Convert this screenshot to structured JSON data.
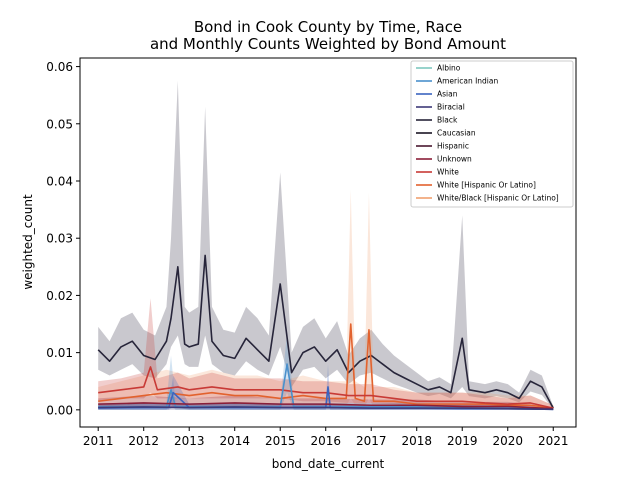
{
  "chart_data": {
    "type": "line",
    "title_line1": "Bond in Cook County by Time, Race",
    "title_line2": "and Monthly Counts Weighted by Bond Amount",
    "xlabel": "bond_date_current",
    "ylabel": "weighted_count",
    "xlim": [
      2010.6,
      2021.5
    ],
    "ylim": [
      -0.003,
      0.0615
    ],
    "x_ticks": [
      2011,
      2012,
      2013,
      2014,
      2015,
      2016,
      2017,
      2018,
      2019,
      2020,
      2021
    ],
    "y_ticks": [
      0.0,
      0.01,
      0.02,
      0.03,
      0.04,
      0.05,
      0.06
    ],
    "y_tick_labels": [
      "0.00",
      "0.01",
      "0.02",
      "0.03",
      "0.04",
      "0.05",
      "0.06"
    ],
    "legend_position": "top-right",
    "legend": [
      {
        "name": "Albino",
        "color": "#7ec8c0"
      },
      {
        "name": "American Indian",
        "color": "#4a90cc"
      },
      {
        "name": "Asian",
        "color": "#3b64c0"
      },
      {
        "name": "Biracial",
        "color": "#3e3a78"
      },
      {
        "name": "Black",
        "color": "#27253a"
      },
      {
        "name": "Caucasian",
        "color": "#1b1624"
      },
      {
        "name": "Hispanic",
        "color": "#4a1830"
      },
      {
        "name": "Unknown",
        "color": "#8a1e38"
      },
      {
        "name": "White",
        "color": "#c83a36"
      },
      {
        "name": "White [Hispanic Or Latino]",
        "color": "#e2622e"
      },
      {
        "name": "White/Black [Hispanic Or Latino]",
        "color": "#f0a070"
      }
    ],
    "series": [
      {
        "name": "Black",
        "color": "#27253a",
        "band_color": "#27253a",
        "x": [
          2011.0,
          2011.25,
          2011.5,
          2011.75,
          2012.0,
          2012.25,
          2012.5,
          2012.6,
          2012.75,
          2012.9,
          2013.0,
          2013.2,
          2013.35,
          2013.5,
          2013.75,
          2014.0,
          2014.25,
          2014.5,
          2014.75,
          2015.0,
          2015.25,
          2015.5,
          2015.75,
          2016.0,
          2016.25,
          2016.5,
          2016.75,
          2017.0,
          2017.25,
          2017.5,
          2017.75,
          2018.0,
          2018.25,
          2018.5,
          2018.75,
          2019.0,
          2019.15,
          2019.5,
          2019.75,
          2020.0,
          2020.25,
          2020.5,
          2020.75,
          2021.0
        ],
        "y": [
          0.0105,
          0.0085,
          0.011,
          0.012,
          0.0095,
          0.0088,
          0.012,
          0.016,
          0.025,
          0.0115,
          0.011,
          0.0115,
          0.027,
          0.012,
          0.0095,
          0.009,
          0.0125,
          0.0105,
          0.0085,
          0.022,
          0.0065,
          0.01,
          0.011,
          0.0085,
          0.0105,
          0.0065,
          0.0085,
          0.0095,
          0.008,
          0.0065,
          0.0055,
          0.0045,
          0.0035,
          0.004,
          0.003,
          0.0125,
          0.0035,
          0.003,
          0.0035,
          0.003,
          0.002,
          0.005,
          0.004,
          0.0003
        ],
        "band_low": [
          0.007,
          0.006,
          0.007,
          0.008,
          0.006,
          0.0055,
          0.008,
          0.011,
          0.013,
          0.008,
          0.0075,
          0.0075,
          0.013,
          0.008,
          0.0065,
          0.006,
          0.0085,
          0.007,
          0.006,
          0.011,
          0.004,
          0.007,
          0.0075,
          0.0055,
          0.007,
          0.0045,
          0.006,
          0.0065,
          0.0055,
          0.0045,
          0.0038,
          0.003,
          0.0024,
          0.0028,
          0.002,
          0.004,
          0.0024,
          0.002,
          0.0024,
          0.002,
          0.0013,
          0.0032,
          0.0026,
          0.0001
        ],
        "band_high": [
          0.0145,
          0.012,
          0.016,
          0.017,
          0.014,
          0.013,
          0.018,
          0.03,
          0.0575,
          0.018,
          0.017,
          0.018,
          0.053,
          0.018,
          0.014,
          0.0135,
          0.018,
          0.016,
          0.013,
          0.0415,
          0.01,
          0.0145,
          0.016,
          0.0125,
          0.0155,
          0.0095,
          0.0125,
          0.014,
          0.0115,
          0.0095,
          0.008,
          0.0065,
          0.005,
          0.0057,
          0.0045,
          0.034,
          0.005,
          0.0045,
          0.005,
          0.0045,
          0.003,
          0.007,
          0.006,
          0.0006
        ]
      },
      {
        "name": "White [Hispanic Or Latino]",
        "color": "#e2622e",
        "band_color": "#f0a070",
        "x": [
          2011.0,
          2011.5,
          2012.0,
          2012.5,
          2013.0,
          2013.5,
          2014.0,
          2014.5,
          2015.0,
          2015.5,
          2016.0,
          2016.45,
          2016.55,
          2016.65,
          2016.85,
          2016.95,
          2017.05,
          2017.5,
          2018.0,
          2018.5,
          2019.0,
          2019.5,
          2020.0,
          2020.5,
          2021.0
        ],
        "y": [
          0.0015,
          0.002,
          0.0025,
          0.003,
          0.0025,
          0.003,
          0.0025,
          0.0025,
          0.002,
          0.0025,
          0.002,
          0.002,
          0.015,
          0.002,
          0.0015,
          0.014,
          0.0015,
          0.0015,
          0.001,
          0.001,
          0.001,
          0.001,
          0.0008,
          0.0008,
          0.0003
        ],
        "band_low": [
          0.0005,
          0.0008,
          0.001,
          0.0012,
          0.001,
          0.0012,
          0.001,
          0.001,
          0.0008,
          0.001,
          0.0008,
          0.0008,
          0.002,
          0.0008,
          0.0005,
          0.002,
          0.0005,
          0.0005,
          0.0003,
          0.0003,
          0.0003,
          0.0003,
          0.0002,
          0.0002,
          0.0001
        ],
        "band_high": [
          0.004,
          0.005,
          0.006,
          0.007,
          0.006,
          0.007,
          0.006,
          0.006,
          0.005,
          0.006,
          0.005,
          0.005,
          0.0385,
          0.005,
          0.004,
          0.038,
          0.004,
          0.004,
          0.003,
          0.003,
          0.003,
          0.003,
          0.0025,
          0.0025,
          0.0008
        ]
      },
      {
        "name": "White",
        "color": "#c83a36",
        "band_color": "#c83a36",
        "x": [
          2011.0,
          2011.5,
          2012.0,
          2012.15,
          2012.3,
          2012.75,
          2013.0,
          2013.5,
          2014.0,
          2014.5,
          2015.0,
          2015.5,
          2016.0,
          2016.5,
          2017.0,
          2017.5,
          2018.0,
          2018.5,
          2019.0,
          2019.5,
          2020.0,
          2020.5,
          2021.0
        ],
        "y": [
          0.003,
          0.0035,
          0.004,
          0.0075,
          0.0035,
          0.004,
          0.0035,
          0.004,
          0.0035,
          0.0035,
          0.0035,
          0.003,
          0.003,
          0.0025,
          0.0025,
          0.002,
          0.0015,
          0.0015,
          0.0015,
          0.0012,
          0.001,
          0.0012,
          0.0003
        ],
        "band_low": [
          0.0015,
          0.002,
          0.002,
          0.003,
          0.002,
          0.002,
          0.002,
          0.002,
          0.002,
          0.002,
          0.002,
          0.0015,
          0.0015,
          0.0012,
          0.0012,
          0.001,
          0.0007,
          0.0007,
          0.0007,
          0.0005,
          0.0005,
          0.0005,
          0.0001
        ],
        "band_high": [
          0.005,
          0.0055,
          0.0065,
          0.0195,
          0.0055,
          0.0065,
          0.0055,
          0.0065,
          0.0055,
          0.0055,
          0.0055,
          0.005,
          0.005,
          0.0045,
          0.0045,
          0.0035,
          0.003,
          0.003,
          0.003,
          0.0025,
          0.002,
          0.0025,
          0.0008
        ]
      },
      {
        "name": "American Indian",
        "color": "#4a90cc",
        "band_color": "#4a90cc",
        "x": [
          2011.0,
          2012.0,
          2012.5,
          2012.6,
          2012.7,
          2013.0,
          2014.0,
          2014.5,
          2015.0,
          2015.15,
          2015.3,
          2016.0,
          2017.0,
          2018.0,
          2019.0,
          2020.0,
          2021.0
        ],
        "y": [
          0.0005,
          0.0005,
          0.0005,
          0.0035,
          0.0005,
          0.0005,
          0.0005,
          0.0005,
          0.0005,
          0.008,
          0.0005,
          0.0005,
          0.0005,
          0.0005,
          0.0003,
          0.0003,
          0.0001
        ],
        "band_low": [
          0.0,
          0.0,
          0.0,
          0.001,
          0.0,
          0.0,
          0.0,
          0.0,
          0.0,
          0.003,
          0.0,
          0.0,
          0.0,
          0.0,
          0.0,
          0.0,
          0.0
        ],
        "band_high": [
          0.0012,
          0.0012,
          0.0012,
          0.0095,
          0.0012,
          0.0012,
          0.0012,
          0.0012,
          0.0012,
          0.0135,
          0.0012,
          0.0012,
          0.0012,
          0.0012,
          0.0008,
          0.0008,
          0.0003
        ]
      },
      {
        "name": "Asian",
        "color": "#3b64c0",
        "band_color": "#3b64c0",
        "x": [
          2011.0,
          2012.0,
          2012.55,
          2012.65,
          2013.0,
          2014.0,
          2015.0,
          2016.0,
          2016.05,
          2016.1,
          2017.0,
          2018.0,
          2019.0,
          2020.0,
          2021.0
        ],
        "y": [
          0.0003,
          0.0004,
          0.0004,
          0.003,
          0.0004,
          0.0004,
          0.0004,
          0.0004,
          0.004,
          0.0004,
          0.0003,
          0.0003,
          0.0002,
          0.0002,
          0.0001
        ],
        "band_low": [
          0.0,
          0.0,
          0.0,
          0.0005,
          0.0,
          0.0,
          0.0,
          0.0,
          0.001,
          0.0,
          0.0,
          0.0,
          0.0,
          0.0,
          0.0
        ],
        "band_high": [
          0.001,
          0.001,
          0.001,
          0.006,
          0.001,
          0.001,
          0.001,
          0.001,
          0.008,
          0.001,
          0.0008,
          0.0008,
          0.0006,
          0.0006,
          0.0002
        ]
      },
      {
        "name": "Unknown",
        "color": "#8a1e38",
        "band_color": "#8a1e38",
        "x": [
          2011.0,
          2012.0,
          2013.0,
          2014.0,
          2015.0,
          2016.0,
          2017.0,
          2018.0,
          2019.0,
          2020.0,
          2021.0
        ],
        "y": [
          0.001,
          0.0012,
          0.001,
          0.0012,
          0.001,
          0.001,
          0.0008,
          0.0008,
          0.0006,
          0.0006,
          0.0002
        ],
        "band_low": [
          0.0003,
          0.0004,
          0.0003,
          0.0004,
          0.0003,
          0.0003,
          0.0002,
          0.0002,
          0.0002,
          0.0002,
          0.0
        ],
        "band_high": [
          0.002,
          0.0025,
          0.002,
          0.0025,
          0.002,
          0.002,
          0.0018,
          0.0018,
          0.0014,
          0.0014,
          0.0005
        ]
      },
      {
        "name": "Biracial",
        "color": "#3e3a78",
        "band_color": "#3e3a78",
        "x": [
          2011.0,
          2012.0,
          2013.0,
          2014.0,
          2015.0,
          2016.0,
          2017.0,
          2018.0,
          2019.0,
          2020.0,
          2021.0
        ],
        "y": [
          0.0004,
          0.0005,
          0.0004,
          0.0005,
          0.0004,
          0.0004,
          0.0003,
          0.0003,
          0.0003,
          0.0002,
          0.0001
        ],
        "band_low": [
          0.0,
          0.0,
          0.0,
          0.0,
          0.0,
          0.0,
          0.0,
          0.0,
          0.0,
          0.0,
          0.0
        ],
        "band_high": [
          0.001,
          0.0012,
          0.001,
          0.0012,
          0.001,
          0.001,
          0.0008,
          0.0008,
          0.0008,
          0.0006,
          0.0003
        ]
      }
    ]
  }
}
